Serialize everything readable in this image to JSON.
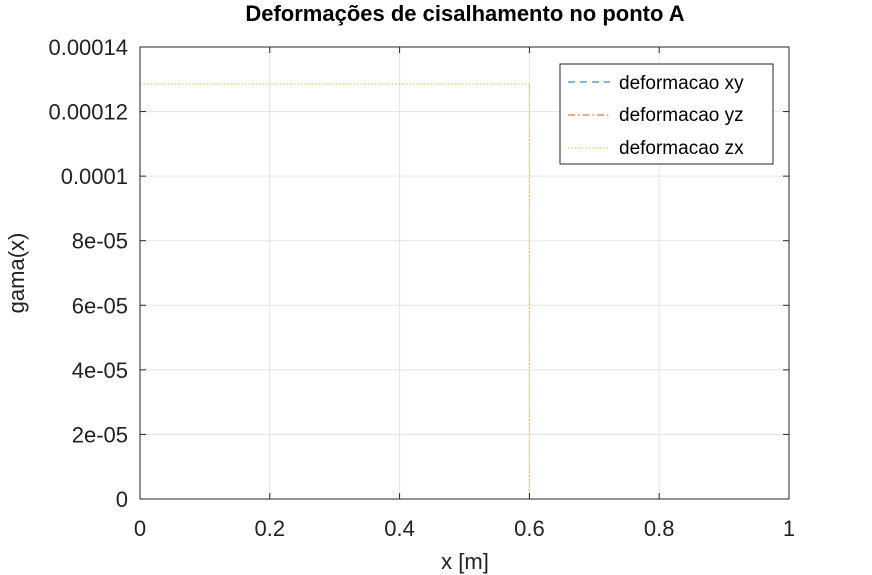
{
  "chart_data": {
    "type": "line",
    "title": "Deformações de cisalhamento no ponto A",
    "xlabel": "x [m]",
    "ylabel": "gama(x)",
    "xlim": [
      0,
      1
    ],
    "ylim": [
      0,
      0.00014
    ],
    "x_ticks": [
      0,
      0.2,
      0.4,
      0.6,
      0.8,
      1
    ],
    "x_tick_labels": [
      "0",
      "0.2",
      "0.4",
      "0.6",
      "0.8",
      "1"
    ],
    "y_ticks": [
      0,
      2e-05,
      4e-05,
      6e-05,
      8e-05,
      0.0001,
      0.00012,
      0.00014
    ],
    "y_tick_labels": [
      "0",
      "2e-05",
      "4e-05",
      "6e-05",
      "8e-05",
      "0.0001",
      "0.00012",
      "0.00014"
    ],
    "grid": true,
    "legend_position": "top-right",
    "series": [
      {
        "name": "deformacao xy",
        "color": "#0072BD",
        "dash": "dashed",
        "x": [
          0,
          1
        ],
        "y": [
          0,
          0
        ]
      },
      {
        "name": "deformacao yz",
        "color": "#D95319",
        "dash": "dashdot",
        "x": [
          0,
          1
        ],
        "y": [
          0,
          0
        ]
      },
      {
        "name": "deformacao zx",
        "color": "#EDB120",
        "dash": "dotted",
        "x": [
          0,
          0.6,
          0.6,
          1
        ],
        "y": [
          0.0001285,
          0.0001285,
          0,
          0
        ]
      }
    ]
  }
}
